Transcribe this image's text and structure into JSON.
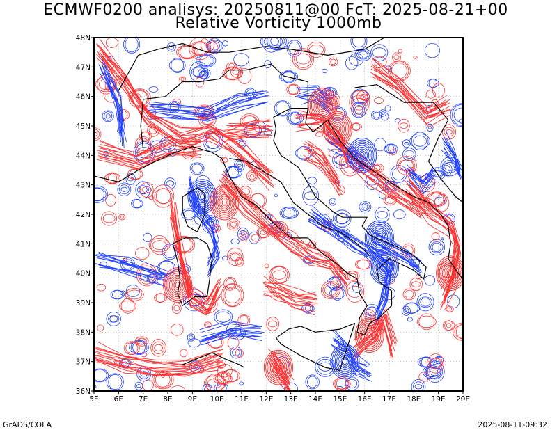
{
  "title_line1": "ECMWF0200 analisys: 20250811@00 FcT: 2025-08-21+00",
  "title_line2": "Relative Vorticity 1000mb",
  "footer_left": "GrADS/COLA",
  "footer_right": "2025-08-11-09:32",
  "x_axis": {
    "labels": [
      "5E",
      "6E",
      "7E",
      "8E",
      "9E",
      "10E",
      "11E",
      "12E",
      "13E",
      "14E",
      "15E",
      "16E",
      "17E",
      "18E",
      "19E",
      "20E"
    ],
    "range": [
      5,
      20
    ]
  },
  "y_axis": {
    "labels": [
      "36N",
      "37N",
      "38N",
      "39N",
      "40N",
      "41N",
      "42N",
      "43N",
      "44N",
      "45N",
      "46N",
      "47N",
      "48N"
    ],
    "range": [
      36,
      48
    ]
  },
  "colors": {
    "positive": "#ff3030",
    "negative": "#2040ff",
    "coast": "#000000",
    "grid": "#999999"
  },
  "map": {
    "projection": "latlon",
    "gridlines": "dotted",
    "fields": [
      "positive vorticity (red)",
      "negative vorticity (blue)"
    ]
  }
}
